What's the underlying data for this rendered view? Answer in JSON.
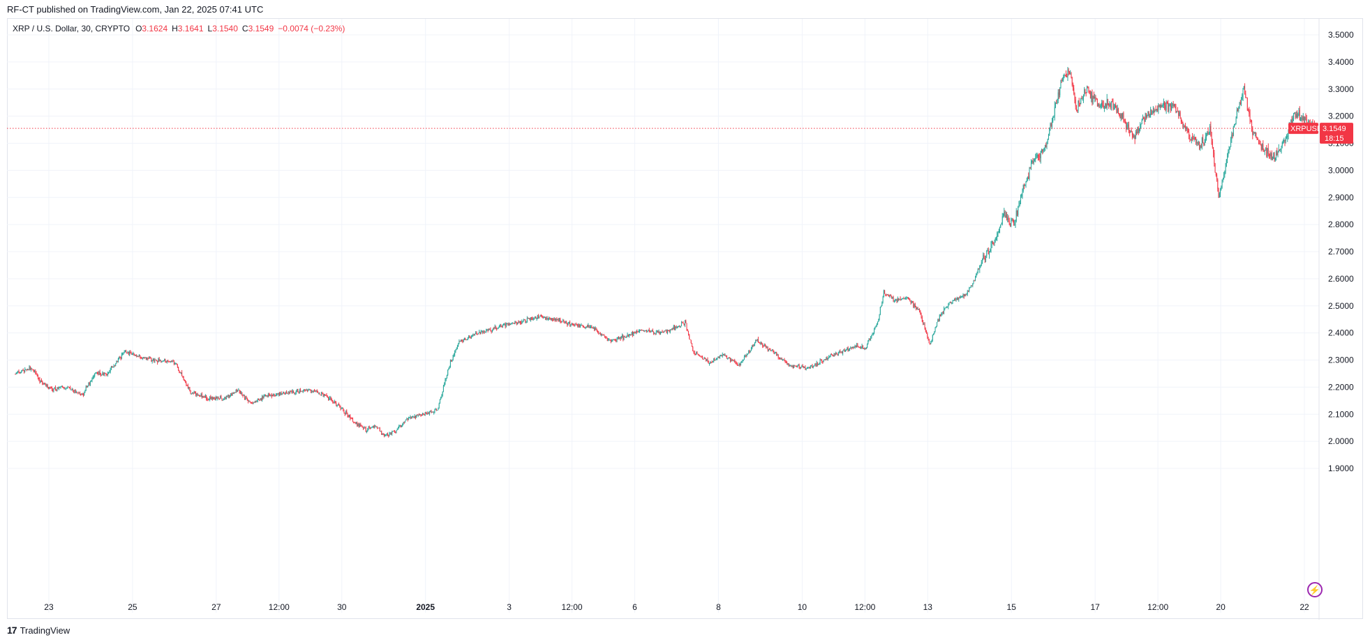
{
  "header": {
    "published": "RF-CT published on TradingView.com, Jan 22, 2025 07:41 UTC"
  },
  "legend": {
    "symbol": "XRP / U.S. Dollar, 30, CRYPTO",
    "o_label": "O",
    "o_value": "3.1624",
    "h_label": "H",
    "h_value": "3.1641",
    "l_label": "L",
    "l_value": "3.1540",
    "c_label": "C",
    "c_value": "3.1549",
    "change": "−0.0074 (−0.23%)"
  },
  "price_tag": {
    "ticker": "XRPUSD",
    "price": "3.1549",
    "countdown": "18:15"
  },
  "footer": {
    "brand": "TradingView",
    "logo": "17"
  },
  "colors": {
    "up": "#26a69a",
    "down": "#f23645",
    "grid": "#f0f3fa",
    "price_line": "#f23645",
    "text": "#131722",
    "accent_icon": "#9c27b0"
  },
  "icons": [
    "tradingview-logo-icon",
    "lightning-bolt-icon"
  ],
  "chart_data": {
    "type": "candlestick",
    "symbol": "XRPUSD",
    "interval": "30",
    "ylim": [
      1.85,
      3.55
    ],
    "y_ticks": [
      "3.5000",
      "3.4000",
      "3.3000",
      "3.2000",
      "3.1000",
      "3.0000",
      "2.9000",
      "2.8000",
      "2.7000",
      "2.6000",
      "2.5000",
      "2.4000",
      "2.3000",
      "2.2000",
      "2.1000",
      "2.0000",
      "1.9000"
    ],
    "x_ticks": [
      {
        "label": "23",
        "day": 0.8
      },
      {
        "label": "25",
        "day": 2.8
      },
      {
        "label": "27",
        "day": 4.8
      },
      {
        "label": "12:00",
        "day": 6.3
      },
      {
        "label": "30",
        "day": 7.8
      },
      {
        "label": "2025",
        "day": 9.8
      },
      {
        "label": "3",
        "day": 11.8
      },
      {
        "label": "12:00",
        "day": 13.3
      },
      {
        "label": "6",
        "day": 14.8
      },
      {
        "label": "8",
        "day": 16.8
      },
      {
        "label": "10",
        "day": 18.8
      },
      {
        "label": "12:00",
        "day": 20.3
      },
      {
        "label": "13",
        "day": 21.8
      },
      {
        "label": "15",
        "day": 23.8
      },
      {
        "label": "17",
        "day": 25.8
      },
      {
        "label": "12:00",
        "day": 27.3
      },
      {
        "label": "20",
        "day": 28.8
      },
      {
        "label": "22",
        "day": 30.8
      }
    ],
    "x_range_days": [
      -0.2,
      31.15
    ],
    "anchors": [
      [
        0.0,
        2.25
      ],
      [
        0.4,
        2.27
      ],
      [
        0.6,
        2.22
      ],
      [
        0.9,
        2.19
      ],
      [
        1.2,
        2.2
      ],
      [
        1.6,
        2.17
      ],
      [
        1.9,
        2.25
      ],
      [
        2.2,
        2.25
      ],
      [
        2.6,
        2.33
      ],
      [
        3.0,
        2.31
      ],
      [
        3.4,
        2.3
      ],
      [
        3.8,
        2.29
      ],
      [
        4.2,
        2.18
      ],
      [
        4.6,
        2.16
      ],
      [
        5.0,
        2.16
      ],
      [
        5.3,
        2.19
      ],
      [
        5.6,
        2.14
      ],
      [
        6.0,
        2.17
      ],
      [
        6.5,
        2.18
      ],
      [
        7.0,
        2.19
      ],
      [
        7.4,
        2.17
      ],
      [
        7.8,
        2.12
      ],
      [
        8.1,
        2.07
      ],
      [
        8.4,
        2.04
      ],
      [
        8.6,
        2.06
      ],
      [
        8.8,
        2.02
      ],
      [
        9.1,
        2.04
      ],
      [
        9.4,
        2.09
      ],
      [
        9.8,
        2.1
      ],
      [
        10.1,
        2.12
      ],
      [
        10.35,
        2.27
      ],
      [
        10.6,
        2.37
      ],
      [
        10.9,
        2.39
      ],
      [
        11.3,
        2.41
      ],
      [
        11.7,
        2.43
      ],
      [
        12.1,
        2.44
      ],
      [
        12.5,
        2.46
      ],
      [
        12.9,
        2.45
      ],
      [
        13.3,
        2.43
      ],
      [
        13.8,
        2.42
      ],
      [
        14.2,
        2.37
      ],
      [
        14.6,
        2.39
      ],
      [
        15.0,
        2.41
      ],
      [
        15.4,
        2.4
      ],
      [
        15.8,
        2.42
      ],
      [
        16.0,
        2.44
      ],
      [
        16.2,
        2.33
      ],
      [
        16.6,
        2.29
      ],
      [
        16.9,
        2.32
      ],
      [
        17.3,
        2.28
      ],
      [
        17.7,
        2.37
      ],
      [
        18.1,
        2.33
      ],
      [
        18.5,
        2.28
      ],
      [
        18.9,
        2.27
      ],
      [
        19.3,
        2.3
      ],
      [
        19.7,
        2.33
      ],
      [
        20.1,
        2.35
      ],
      [
        20.3,
        2.34
      ],
      [
        20.6,
        2.44
      ],
      [
        20.75,
        2.55
      ],
      [
        21.0,
        2.52
      ],
      [
        21.3,
        2.53
      ],
      [
        21.6,
        2.48
      ],
      [
        21.85,
        2.36
      ],
      [
        22.1,
        2.47
      ],
      [
        22.4,
        2.52
      ],
      [
        22.7,
        2.54
      ],
      [
        22.9,
        2.59
      ],
      [
        23.1,
        2.67
      ],
      [
        23.4,
        2.74
      ],
      [
        23.6,
        2.83
      ],
      [
        23.85,
        2.8
      ],
      [
        24.1,
        2.94
      ],
      [
        24.3,
        3.03
      ],
      [
        24.6,
        3.08
      ],
      [
        24.8,
        3.2
      ],
      [
        25.0,
        3.34
      ],
      [
        25.2,
        3.36
      ],
      [
        25.35,
        3.23
      ],
      [
        25.6,
        3.3
      ],
      [
        25.9,
        3.24
      ],
      [
        26.2,
        3.25
      ],
      [
        26.5,
        3.18
      ],
      [
        26.75,
        3.12
      ],
      [
        27.0,
        3.2
      ],
      [
        27.4,
        3.24
      ],
      [
        27.7,
        3.23
      ],
      [
        28.0,
        3.14
      ],
      [
        28.3,
        3.09
      ],
      [
        28.55,
        3.15
      ],
      [
        28.75,
        2.9
      ],
      [
        29.0,
        3.08
      ],
      [
        29.2,
        3.22
      ],
      [
        29.35,
        3.3
      ],
      [
        29.55,
        3.15
      ],
      [
        29.8,
        3.08
      ],
      [
        30.1,
        3.05
      ],
      [
        30.35,
        3.12
      ],
      [
        30.55,
        3.21
      ],
      [
        30.8,
        3.19
      ],
      [
        31.0,
        3.16
      ],
      [
        31.1,
        3.155
      ]
    ],
    "last_price": 3.1549,
    "annotations": [
      "XRPUSD 3.1549 18:15"
    ]
  }
}
